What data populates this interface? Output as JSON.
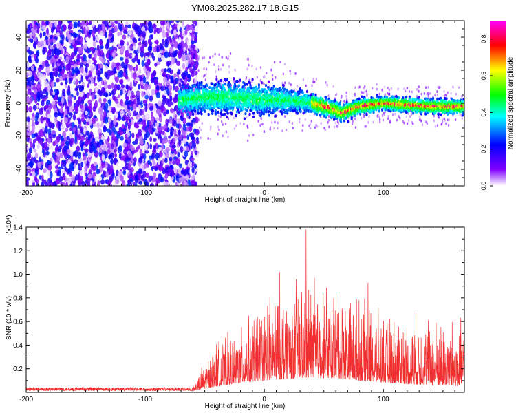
{
  "figure": {
    "title": "YM08.2025.282.17.18.G15"
  },
  "chart_data": [
    {
      "type": "heatmap",
      "title": "YM08.2025.282.17.18.G15",
      "xlabel": "Height of straight line (km)",
      "ylabel": "Frequency (Hz)",
      "xlim": [
        -200,
        168
      ],
      "ylim": [
        -50,
        50
      ],
      "x_ticks": [
        -200,
        -100,
        0,
        100
      ],
      "y_ticks": [
        -40,
        -20,
        0,
        20,
        40
      ],
      "grid": false,
      "colorbar": {
        "label": "Normalized spectral amplitude",
        "range": [
          0.0,
          0.9
        ],
        "ticks": [
          "0.0",
          "0.2",
          "0.4",
          "0.6",
          "0.8"
        ],
        "colormap": [
          "#ffffff",
          "#8000ff",
          "#0000ff",
          "#00ffff",
          "#00ff00",
          "#ffff00",
          "#ff0000",
          "#ff00ff"
        ]
      },
      "regions": [
        {
          "x_from": -200,
          "x_to": -60,
          "description_level": "scattered noise",
          "amplitude": [
            0.0,
            0.15
          ]
        },
        {
          "x_from": -60,
          "x_to": 168,
          "description_level": "signal band",
          "amplitude": [
            0.2,
            0.9
          ]
        }
      ],
      "signal_center_freq": [
        {
          "x": -70,
          "y": 2
        },
        {
          "x": -40,
          "y": 4
        },
        {
          "x": -20,
          "y": 3
        },
        {
          "x": 0,
          "y": 2
        },
        {
          "x": 20,
          "y": 2
        },
        {
          "x": 40,
          "y": 0
        },
        {
          "x": 60,
          "y": -4
        },
        {
          "x": 65,
          "y": -6
        },
        {
          "x": 80,
          "y": -2
        },
        {
          "x": 100,
          "y": 0
        },
        {
          "x": 120,
          "y": -1
        },
        {
          "x": 140,
          "y": -2
        },
        {
          "x": 168,
          "y": -2
        }
      ],
      "band_halfwidth_hz": [
        {
          "x": -70,
          "w": 12
        },
        {
          "x": -30,
          "w": 14
        },
        {
          "x": 10,
          "w": 12
        },
        {
          "x": 40,
          "w": 8
        },
        {
          "x": 100,
          "w": 6
        },
        {
          "x": 168,
          "w": 6
        }
      ]
    },
    {
      "type": "line",
      "xlabel": "Height of straight line (km)",
      "ylabel": "SNR (10 * v/v)",
      "y_multiplier": "(x10⁴)",
      "xlim": [
        -200,
        168
      ],
      "ylim": [
        0,
        1.4
      ],
      "x_ticks": [
        -200,
        -100,
        0,
        100
      ],
      "y_ticks": [
        0.2,
        0.4,
        0.6,
        0.8,
        1.0,
        1.2,
        1.4
      ],
      "grid": false,
      "series_color": "#f03030",
      "envelope": [
        {
          "x": -200,
          "base": 0.01,
          "peak": 0.05
        },
        {
          "x": -60,
          "base": 0.01,
          "peak": 0.05
        },
        {
          "x": -50,
          "base": 0.03,
          "peak": 0.25
        },
        {
          "x": -40,
          "base": 0.05,
          "peak": 0.4
        },
        {
          "x": -20,
          "base": 0.08,
          "peak": 0.5
        },
        {
          "x": 0,
          "base": 0.1,
          "peak": 0.75
        },
        {
          "x": 30,
          "base": 0.12,
          "peak": 0.9
        },
        {
          "x": 60,
          "base": 0.12,
          "peak": 0.85
        },
        {
          "x": 100,
          "base": 0.08,
          "peak": 0.6
        },
        {
          "x": 140,
          "base": 0.06,
          "peak": 0.6
        },
        {
          "x": 168,
          "base": 0.05,
          "peak": 0.55
        }
      ],
      "notable_peaks": [
        {
          "x": 35,
          "y": 1.38
        },
        {
          "x": 13,
          "y": 1.02
        },
        {
          "x": 42,
          "y": 0.97
        },
        {
          "x": 87,
          "y": 0.93
        }
      ]
    }
  ]
}
